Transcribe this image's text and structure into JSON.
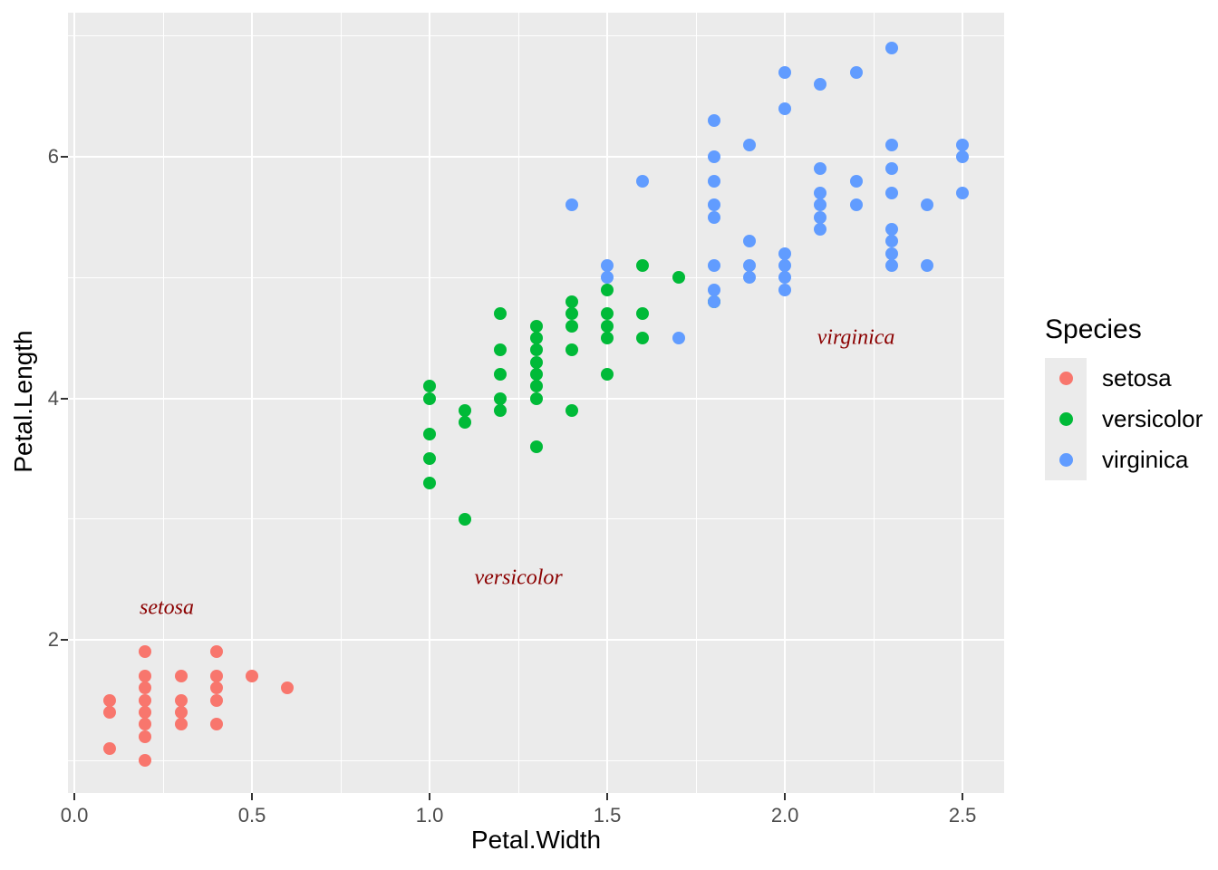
{
  "chart_data": {
    "type": "scatter",
    "title": "",
    "xlabel": "Petal.Width",
    "ylabel": "Petal.Length",
    "xlim": [
      -0.018,
      2.617
    ],
    "ylim": [
      0.732,
      7.193
    ],
    "x_tick_values": [
      0.0,
      0.5,
      1.0,
      1.5,
      2.0,
      2.5
    ],
    "x_tick_labels": [
      "0.0",
      "0.5",
      "1.0",
      "1.5",
      "2.0",
      "2.5"
    ],
    "y_tick_values": [
      2,
      4,
      6
    ],
    "y_tick_labels": [
      "2",
      "4",
      "6"
    ],
    "x_minor_gridlines": [
      0.25,
      0.75,
      1.25,
      1.75,
      2.25
    ],
    "y_minor_gridlines": [
      1,
      3,
      5,
      7
    ],
    "grid": "white major and minor gridlines on grey panel",
    "legend_position": "right",
    "note": "iris dataset; points listed are the unique visible (Petal.Width, Petal.Length) positions per species (duplicates overplot at identical positions)",
    "series": [
      {
        "name": "setosa",
        "color": "#F8766D",
        "points": [
          [
            0.1,
            1.1
          ],
          [
            0.1,
            1.4
          ],
          [
            0.1,
            1.5
          ],
          [
            0.2,
            1.0
          ],
          [
            0.2,
            1.2
          ],
          [
            0.2,
            1.3
          ],
          [
            0.2,
            1.4
          ],
          [
            0.2,
            1.5
          ],
          [
            0.2,
            1.6
          ],
          [
            0.2,
            1.7
          ],
          [
            0.2,
            1.9
          ],
          [
            0.3,
            1.3
          ],
          [
            0.3,
            1.4
          ],
          [
            0.3,
            1.5
          ],
          [
            0.3,
            1.7
          ],
          [
            0.4,
            1.3
          ],
          [
            0.4,
            1.5
          ],
          [
            0.4,
            1.6
          ],
          [
            0.4,
            1.7
          ],
          [
            0.4,
            1.9
          ],
          [
            0.5,
            1.7
          ],
          [
            0.6,
            1.6
          ]
        ]
      },
      {
        "name": "versicolor",
        "color": "#00BA38",
        "points": [
          [
            1.0,
            3.3
          ],
          [
            1.0,
            3.5
          ],
          [
            1.0,
            3.7
          ],
          [
            1.0,
            4.0
          ],
          [
            1.0,
            4.1
          ],
          [
            1.1,
            3.0
          ],
          [
            1.1,
            3.8
          ],
          [
            1.1,
            3.9
          ],
          [
            1.2,
            3.9
          ],
          [
            1.2,
            4.0
          ],
          [
            1.2,
            4.2
          ],
          [
            1.2,
            4.4
          ],
          [
            1.2,
            4.7
          ],
          [
            1.3,
            3.6
          ],
          [
            1.3,
            4.0
          ],
          [
            1.3,
            4.1
          ],
          [
            1.3,
            4.2
          ],
          [
            1.3,
            4.3
          ],
          [
            1.3,
            4.4
          ],
          [
            1.3,
            4.5
          ],
          [
            1.3,
            4.6
          ],
          [
            1.4,
            3.9
          ],
          [
            1.4,
            4.4
          ],
          [
            1.4,
            4.6
          ],
          [
            1.4,
            4.7
          ],
          [
            1.4,
            4.8
          ],
          [
            1.5,
            4.2
          ],
          [
            1.5,
            4.5
          ],
          [
            1.5,
            4.6
          ],
          [
            1.5,
            4.7
          ],
          [
            1.5,
            4.9
          ],
          [
            1.6,
            4.5
          ],
          [
            1.6,
            4.7
          ],
          [
            1.6,
            5.1
          ],
          [
            1.7,
            5.0
          ],
          [
            1.8,
            4.8
          ]
        ]
      },
      {
        "name": "virginica",
        "color": "#619CFF",
        "points": [
          [
            1.4,
            5.6
          ],
          [
            1.5,
            5.0
          ],
          [
            1.5,
            5.1
          ],
          [
            1.6,
            5.8
          ],
          [
            1.7,
            4.5
          ],
          [
            1.8,
            4.8
          ],
          [
            1.8,
            4.9
          ],
          [
            1.8,
            5.1
          ],
          [
            1.8,
            5.5
          ],
          [
            1.8,
            5.6
          ],
          [
            1.8,
            5.8
          ],
          [
            1.8,
            6.0
          ],
          [
            1.8,
            6.3
          ],
          [
            1.9,
            5.0
          ],
          [
            1.9,
            5.1
          ],
          [
            1.9,
            5.3
          ],
          [
            1.9,
            6.1
          ],
          [
            2.0,
            4.9
          ],
          [
            2.0,
            5.0
          ],
          [
            2.0,
            5.1
          ],
          [
            2.0,
            5.2
          ],
          [
            2.0,
            6.4
          ],
          [
            2.0,
            6.7
          ],
          [
            2.1,
            5.4
          ],
          [
            2.1,
            5.5
          ],
          [
            2.1,
            5.6
          ],
          [
            2.1,
            5.7
          ],
          [
            2.1,
            5.9
          ],
          [
            2.1,
            6.6
          ],
          [
            2.2,
            5.6
          ],
          [
            2.2,
            5.8
          ],
          [
            2.2,
            6.7
          ],
          [
            2.3,
            5.1
          ],
          [
            2.3,
            5.2
          ],
          [
            2.3,
            5.3
          ],
          [
            2.3,
            5.4
          ],
          [
            2.3,
            5.7
          ],
          [
            2.3,
            5.9
          ],
          [
            2.3,
            6.1
          ],
          [
            2.3,
            6.9
          ],
          [
            2.4,
            5.1
          ],
          [
            2.4,
            5.6
          ],
          [
            2.5,
            5.7
          ],
          [
            2.5,
            6.0
          ],
          [
            2.5,
            6.1
          ]
        ]
      }
    ],
    "annotations": [
      {
        "text": "setosa",
        "x": 0.26,
        "y": 2.26,
        "color": "#8B0000",
        "style": "italic serif"
      },
      {
        "text": "versicolor",
        "x": 1.25,
        "y": 2.51,
        "color": "#8B0000",
        "style": "italic serif"
      },
      {
        "text": "virginica",
        "x": 2.2,
        "y": 4.5,
        "color": "#8B0000",
        "style": "italic serif"
      }
    ]
  },
  "legend": {
    "title": "Species",
    "items": [
      {
        "label": "setosa",
        "color": "#F8766D"
      },
      {
        "label": "versicolor",
        "color": "#00BA38"
      },
      {
        "label": "virginica",
        "color": "#619CFF"
      }
    ]
  },
  "theme": {
    "panel_background": "#EBEBEB",
    "gridline_color": "#FFFFFF",
    "tick_mark_color": "#333333",
    "tick_label_color": "#4D4D4D",
    "axis_title_color": "#000000",
    "annotation_color": "#8B0000",
    "figure_background": "#FFFFFF"
  }
}
